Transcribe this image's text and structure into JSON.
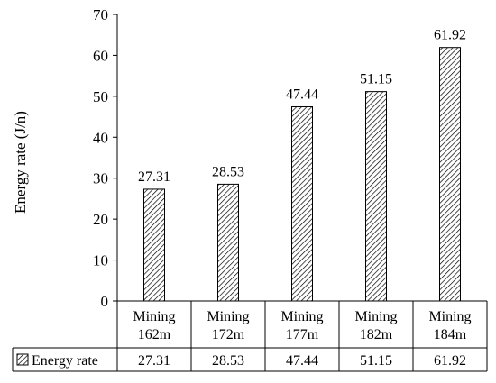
{
  "chart_data": {
    "type": "bar",
    "categories": [
      [
        "Mining",
        "162m"
      ],
      [
        "Mining",
        "172m"
      ],
      [
        "Mining",
        "177m"
      ],
      [
        "Mining",
        "182m"
      ],
      [
        "Mining",
        "184m"
      ]
    ],
    "series": [
      {
        "name": "Energy rate",
        "values": [
          27.31,
          28.53,
          47.44,
          51.15,
          61.92
        ]
      }
    ],
    "data_labels": [
      "27.31",
      "28.53",
      "47.44",
      "51.15",
      "61.92"
    ],
    "table_values": [
      "27.31",
      "28.53",
      "47.44",
      "51.15",
      "61.92"
    ],
    "y_ticks": [
      "0",
      "10",
      "20",
      "30",
      "40",
      "50",
      "60",
      "70"
    ],
    "ylabel": "Energy rate (J/n)",
    "ylim": [
      0,
      70
    ],
    "grid": false,
    "legend": "data-table-bottom",
    "bar_fill": "hatched",
    "colors": {
      "axis": "#000000",
      "bar_stroke": "#000000",
      "hatch": "#000000",
      "background": "#ffffff"
    }
  }
}
